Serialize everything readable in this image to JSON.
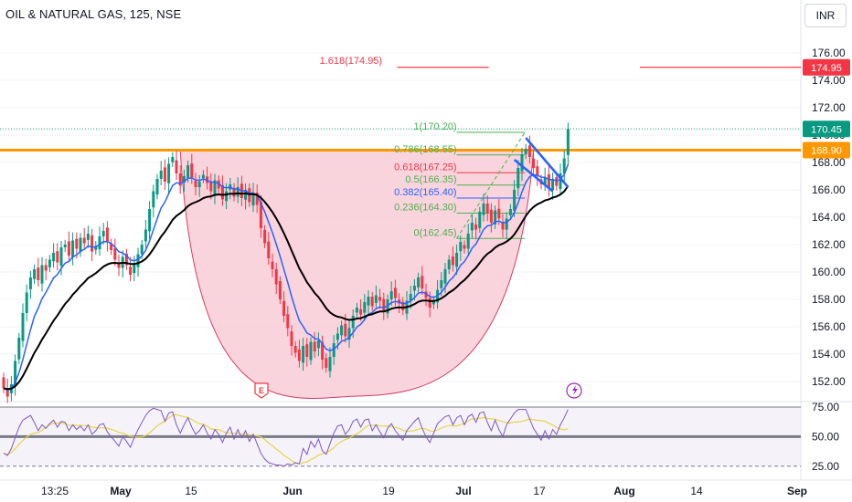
{
  "header": {
    "title": "OIL & NATURAL GAS, 125, NSE",
    "currency": "INR"
  },
  "colors": {
    "up": "#089981",
    "down": "#f23645",
    "ema_fast": "#2962ff",
    "ema_slow": "#000000",
    "resistance": "#ff9800",
    "cup_fill": "#f8c6d2",
    "cup_stroke": "#d23c63",
    "fib_green": "#4caf50",
    "fib_red": "#f23645",
    "fib_blue": "#2962ff",
    "rsi_line": "#7e57c2",
    "rsi_ma": "#e8d44d",
    "rsi_band": "#ede7f6"
  },
  "chart_data": {
    "type": "candlestick",
    "price_axis": {
      "ticks": [
        "176.00",
        "174.00",
        "172.00",
        "170.00",
        "168.00",
        "166.00",
        "164.00",
        "162.00",
        "160.00",
        "158.00",
        "156.00",
        "154.00",
        "152.00"
      ],
      "range": [
        150.8,
        177.8
      ]
    },
    "price_tags": [
      {
        "label": "174.95",
        "value": 174.95,
        "color": "#f23645"
      },
      {
        "label": "170.45",
        "value": 170.45,
        "color": "#089981"
      },
      {
        "label": "168.90",
        "value": 168.9,
        "color": "#ff9800"
      }
    ],
    "resistance_level": 168.9,
    "target_level": 174.95,
    "time_axis": [
      "13:25",
      "May",
      "15",
      "Jun",
      "19",
      "Jul",
      "17",
      "Aug",
      "14",
      "Sep"
    ],
    "fib_levels": [
      {
        "label": "1.618(174.95)",
        "value": 174.95,
        "color": "#f23645"
      },
      {
        "label": "1(170.20)",
        "value": 170.2,
        "color": "#4caf50"
      },
      {
        "label": "0.786(168.55)",
        "value": 168.55,
        "color": "#4caf50"
      },
      {
        "label": "0.618(167.25)",
        "value": 167.25,
        "color": "#f23645"
      },
      {
        "label": "0.5(166.35)",
        "value": 166.35,
        "color": "#4caf50"
      },
      {
        "label": "0.382(165.40)",
        "value": 165.4,
        "color": "#2962ff"
      },
      {
        "label": "0.236(164.30)",
        "value": 164.3,
        "color": "#4caf50"
      },
      {
        "label": "0(162.45)",
        "value": 162.45,
        "color": "#4caf50"
      }
    ],
    "rsi_axis": {
      "ticks": [
        "75.00",
        "50.00",
        "25.00"
      ],
      "range": [
        22,
        78
      ]
    },
    "closes": [
      151.5,
      150.9,
      151.8,
      153.5,
      155.2,
      157.0,
      158.5,
      159.6,
      160.2,
      159.4,
      160.5,
      160.1,
      160.9,
      161.4,
      160.7,
      161.8,
      162.0,
      161.2,
      162.3,
      161.7,
      162.5,
      162.1,
      162.8,
      161.5,
      161.9,
      162.6,
      163.0,
      162.2,
      161.6,
      160.9,
      160.3,
      161.1,
      160.5,
      159.8,
      160.6,
      161.3,
      162.0,
      163.1,
      164.6,
      165.9,
      166.8,
      167.4,
      166.6,
      167.9,
      168.4,
      167.2,
      166.3,
      167.0,
      167.8,
      166.9,
      166.2,
      166.6,
      167.1,
      166.5,
      165.9,
      166.7,
      166.1,
      165.3,
      165.9,
      166.4,
      165.5,
      166.2,
      165.4,
      166.0,
      165.1,
      165.8,
      164.9,
      163.2,
      162.1,
      161.0,
      160.2,
      159.1,
      158.0,
      156.8,
      155.9,
      154.6,
      154.1,
      153.5,
      154.6,
      153.8,
      154.9,
      154.2,
      155.0,
      153.6,
      153.0,
      153.8,
      154.8,
      155.5,
      156.1,
      155.3,
      155.9,
      156.8,
      157.4,
      156.9,
      157.8,
      158.2,
      157.5,
      158.3,
      157.9,
      157.2,
      158.0,
      158.6,
      158.1,
      157.7,
      157.2,
      157.9,
      158.4,
      159.0,
      159.6,
      158.8,
      158.1,
      157.4,
      157.9,
      158.7,
      159.4,
      160.2,
      160.9,
      160.5,
      161.4,
      162.2,
      161.7,
      162.8,
      163.6,
      163.1,
      164.4,
      165.0,
      164.3,
      163.6,
      164.5,
      163.9,
      163.1,
      163.9,
      164.6,
      166.0,
      167.6,
      168.6,
      169.0,
      168.4,
      167.6,
      167.0,
      166.4,
      166.9,
      166.1,
      166.8,
      166.3,
      167.2,
      168.3,
      170.45
    ],
    "rsi": [
      36,
      34,
      40,
      49,
      58,
      64,
      66,
      68,
      62,
      55,
      60,
      57,
      61,
      64,
      58,
      63,
      62,
      55,
      60,
      56,
      59,
      55,
      60,
      52,
      55,
      60,
      61,
      54,
      50,
      46,
      42,
      50,
      46,
      41,
      49,
      56,
      62,
      68,
      72,
      74,
      73,
      72,
      63,
      70,
      71,
      60,
      53,
      60,
      66,
      58,
      52,
      55,
      60,
      53,
      48,
      56,
      52,
      45,
      53,
      58,
      48,
      56,
      49,
      55,
      46,
      52,
      44,
      36,
      31,
      28,
      27,
      26,
      26,
      25,
      27,
      26,
      28,
      27,
      40,
      35,
      46,
      41,
      48,
      38,
      35,
      44,
      53,
      59,
      60,
      52,
      56,
      63,
      65,
      58,
      64,
      65,
      55,
      60,
      54,
      49,
      57,
      61,
      55,
      51,
      47,
      55,
      59,
      63,
      66,
      57,
      50,
      45,
      53,
      61,
      64,
      67,
      68,
      60,
      66,
      68,
      60,
      67,
      69,
      62,
      70,
      71,
      62,
      55,
      64,
      56,
      50,
      60,
      65,
      70,
      73,
      73,
      73,
      65,
      57,
      52,
      47,
      55,
      48,
      56,
      52,
      60,
      66,
      73
    ]
  }
}
